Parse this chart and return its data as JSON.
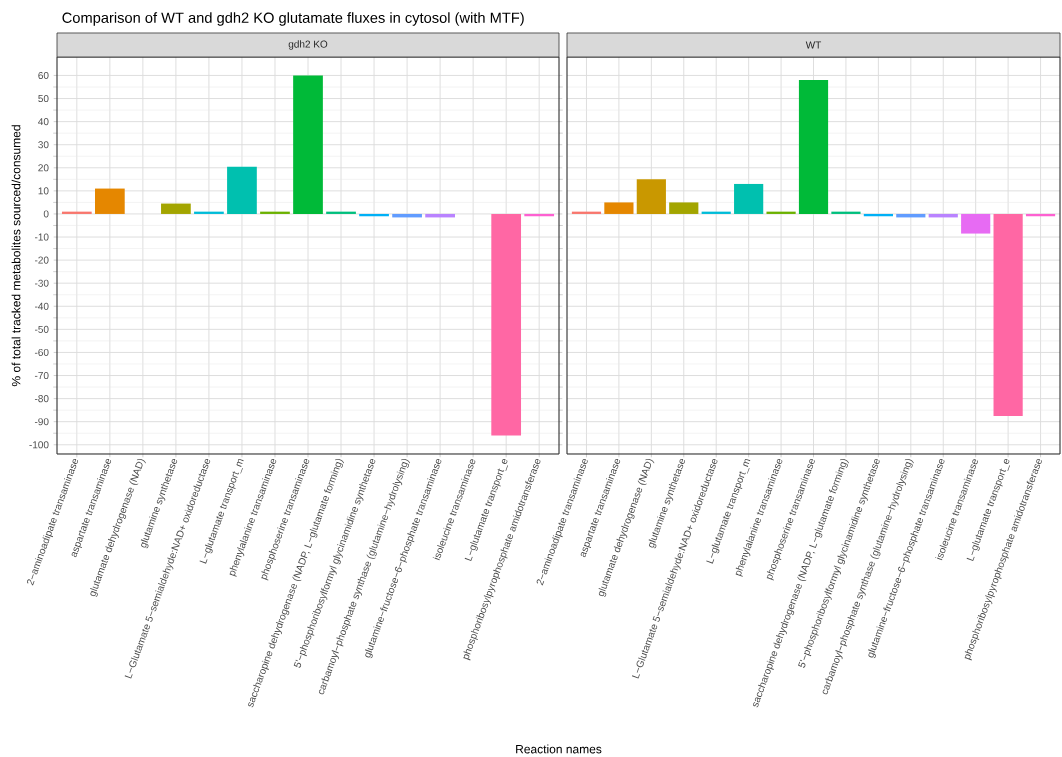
{
  "chart_data": [
    {
      "type": "bar",
      "title": "Comparison of WT and gdh2 KO glutamate fluxes in cytosol (with MTF)",
      "subtitle": "gdh2 KO",
      "xlabel": "Reaction names",
      "ylabel": "% of total tracked metabolites sourced/consumed",
      "categories": [
        "2−aminoadipate transaminase",
        "aspartate transaminase",
        "glutamate dehydrogenase (NAD)",
        "glutamine synthetase",
        "L−Glutamate 5−semialdehyde:NAD+ oxidoreductase",
        "L−glutamate transport_m",
        "phenylalanine transaminase",
        "phosphoserine transaminase",
        "saccharopine dehydrogenase (NADP, L−glutamate forming)",
        "5'−phosphoribosylformyl glycinamidine synthetase",
        "carbamoyl−phosphate synthase (glutamine−hydrolysing)",
        "glutamine−fructose−6−phosphate transaminase",
        "isoleucine transaminase",
        "L−glutamate transport_e",
        "phosphoribosylpyrophosphate amidotransferase"
      ],
      "values": [
        1,
        11,
        null,
        4.5,
        1,
        20.5,
        1,
        60,
        1,
        -1,
        -1.5,
        -1.5,
        null,
        -96,
        -1
      ],
      "colors": [
        "#F8766D",
        "#E58700",
        "#C99800",
        "#A3A500",
        "#00BCD8",
        "#00C0AF",
        "#6BB100",
        "#00BA38",
        "#00BF7D",
        "#00B0F6",
        "#619CFF",
        "#B983FF",
        "#E76BF3",
        "#FF67A4",
        "#FD61D1"
      ],
      "ylim": [
        -104,
        68
      ],
      "yticks": [
        -100,
        -90,
        -80,
        -70,
        -60,
        -50,
        -40,
        -30,
        -20,
        -10,
        0,
        10,
        20,
        30,
        40,
        50,
        60
      ],
      "grid": true
    },
    {
      "type": "bar",
      "subtitle": "WT",
      "categories": [
        "2−aminoadipate transaminase",
        "aspartate transaminase",
        "glutamate dehydrogenase (NAD)",
        "glutamine synthetase",
        "L−Glutamate 5−semialdehyde:NAD+ oxidoreductase",
        "L−glutamate transport_m",
        "phenylalanine transaminase",
        "phosphoserine transaminase",
        "saccharopine dehydrogenase (NADP, L−glutamate forming)",
        "5'−phosphoribosylformyl glycinamidine synthetase",
        "carbamoyl−phosphate synthase (glutamine−hydrolysing)",
        "glutamine−fructose−6−phosphate transaminase",
        "isoleucine transaminase",
        "L−glutamate transport_e",
        "phosphoribosylpyrophosphate amidotransferase"
      ],
      "values": [
        1,
        5,
        15,
        5,
        1,
        13,
        1,
        58,
        1,
        -1,
        -1.5,
        -1.5,
        -8.5,
        -87.5,
        -1
      ],
      "colors": [
        "#F8766D",
        "#E58700",
        "#C99800",
        "#A3A500",
        "#00BCD8",
        "#00C0AF",
        "#6BB100",
        "#00BA38",
        "#00BF7D",
        "#00B0F6",
        "#619CFF",
        "#B983FF",
        "#E76BF3",
        "#FF67A4",
        "#FD61D1"
      ],
      "ylim": [
        -104,
        68
      ],
      "yticks": [
        -100,
        -90,
        -80,
        -70,
        -60,
        -50,
        -40,
        -30,
        -20,
        -10,
        0,
        10,
        20,
        30,
        40,
        50,
        60
      ],
      "grid": true,
      "tick_labels": "x"
    }
  ]
}
